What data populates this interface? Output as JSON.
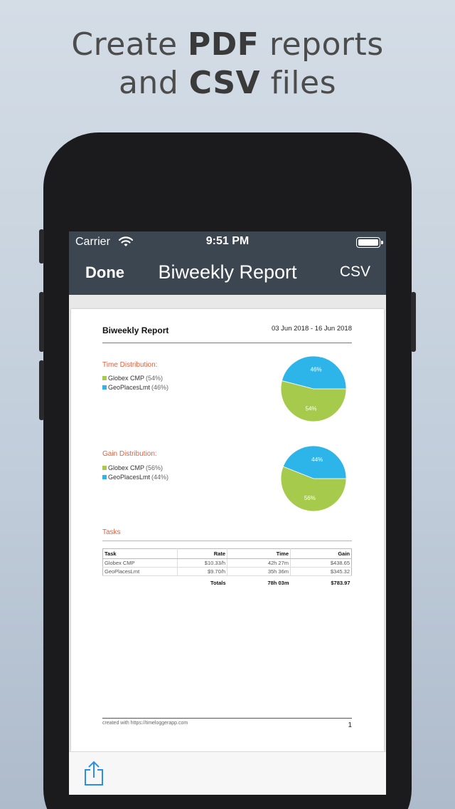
{
  "headline": {
    "line1_pre": "Create ",
    "line1_bold": "PDF",
    "line1_post": " reports",
    "line2_pre": "and ",
    "line2_bold": "CSV",
    "line2_post": " files"
  },
  "status": {
    "carrier": "Carrier",
    "time": "9:51 PM"
  },
  "nav": {
    "done": "Done",
    "title": "Biweekly Report",
    "csv": "CSV"
  },
  "report": {
    "title": "Biweekly Report",
    "dates": "03 Jun 2018 - 16 Jun 2018",
    "time_section": {
      "title": "Time Distribution:",
      "items": [
        {
          "name": "Globex CMP",
          "pct": "(54%)",
          "color": "#a6cb4c",
          "value": 54,
          "label": "54%"
        },
        {
          "name": "GeoPlacesLmt",
          "pct": "(46%)",
          "color": "#2db5ea",
          "value": 46,
          "label": "46%"
        }
      ]
    },
    "gain_section": {
      "title": "Gain Distribution:",
      "items": [
        {
          "name": "Globex CMP",
          "pct": "(56%)",
          "color": "#a6cb4c",
          "value": 56,
          "label": "56%"
        },
        {
          "name": "GeoPlacesLmt",
          "pct": "(44%)",
          "color": "#2db5ea",
          "value": 44,
          "label": "44%"
        }
      ]
    },
    "tasks_title": "Tasks",
    "table": {
      "headers": [
        "Task",
        "Rate",
        "Time",
        "Gain"
      ],
      "rows": [
        [
          "Globex CMP",
          "$10.33/h",
          "42h 27m",
          "$438.65"
        ],
        [
          "GeoPlacesLmt",
          "$9.70/h",
          "35h 36m",
          "$345.32"
        ]
      ],
      "totals": [
        "",
        "Totals",
        "78h 03m",
        "$783.97"
      ]
    },
    "footer": "created with https://timeloggerapp.com",
    "page_number": "1"
  },
  "toolbar": {
    "share_icon": "share-icon"
  }
}
